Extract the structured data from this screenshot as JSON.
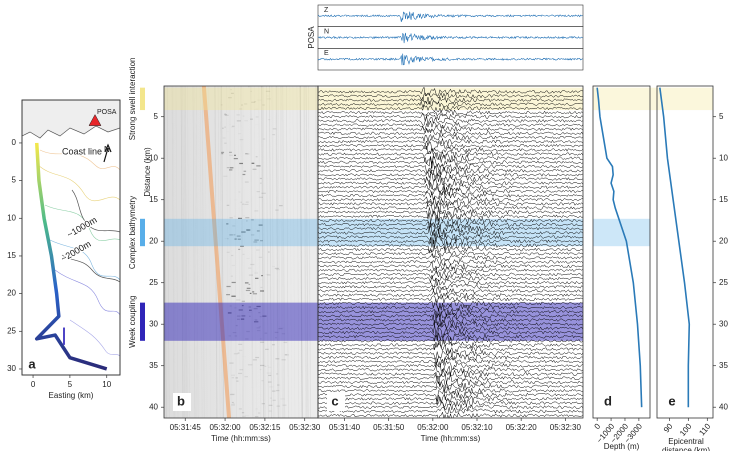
{
  "chart_data": [
    {
      "type": "map",
      "panel_label": "a",
      "xlabel": "Easting (km)",
      "xlim": [
        -1.5,
        11.8
      ],
      "ylim": [
        -5.7,
        30.8
      ],
      "y_inverted": true,
      "xticks": [
        0,
        5,
        10
      ],
      "yticks": [
        0,
        5,
        10,
        15,
        20,
        25,
        30
      ],
      "station": "POSA",
      "station_color": "#e8262a",
      "annotations": [
        "Coast line",
        "N",
        "~1000m",
        "~2000m"
      ],
      "cable": {
        "x": [
          0.5,
          0.8,
          1.5,
          2.5,
          3.2,
          3.5,
          1.0,
          0.5,
          3.0,
          4.0,
          5.0,
          10.0
        ],
        "y": [
          0,
          5,
          10,
          15,
          20,
          23,
          25.5,
          26,
          25.5,
          27,
          28.5,
          30
        ]
      }
    },
    {
      "type": "waterfall",
      "panel_label": "b",
      "xlabel": "Time (hh:mm:ss)",
      "ylabel": "Distance (km)",
      "xlim": [
        "05:31:37",
        "05:32:35"
      ],
      "xticks": [
        "05:31:45",
        "05:32:00",
        "05:32:15",
        "05:32:30"
      ],
      "ylim": [
        1.3,
        41.3
      ],
      "yticks": [
        5,
        10,
        15,
        20,
        25,
        30,
        35,
        40
      ],
      "bands": [
        {
          "label": "Strong swell interaction",
          "range": [
            1.5,
            4.2
          ],
          "color": "#f3e68c"
        },
        {
          "label": "Complex bathymetry",
          "range": [
            17.3,
            20.6
          ],
          "color": "#58aee9"
        },
        {
          "label": "Week coupling",
          "range": [
            27.4,
            32.0
          ],
          "color": "#2f25b8"
        }
      ]
    },
    {
      "type": "seismogram",
      "panel_label": "c",
      "xlabel": "Time (hh:mm:ss)",
      "xlim": [
        "05:31:34",
        "05:32:34"
      ],
      "xticks": [
        "05:31:40",
        "05:31:50",
        "05:32:00",
        "05:32:10",
        "05:32:20",
        "05:32:30"
      ],
      "ylim": [
        1.3,
        41.3
      ]
    },
    {
      "type": "station-traces",
      "ylabel": "POSA",
      "color": "#1f6fb4",
      "series": [
        {
          "name": "Z"
        },
        {
          "name": "N"
        },
        {
          "name": "E"
        }
      ]
    },
    {
      "type": "line",
      "panel_label": "d",
      "xlabel": "Depth (m)",
      "color": "#2a7ab8",
      "xlim": [
        300,
        -3800
      ],
      "ylim": [
        1.3,
        41.3
      ],
      "xticks": [
        0,
        {
          "value": -1000,
          "label": "−1000"
        },
        {
          "value": -2000,
          "label": "−2000"
        },
        {
          "value": -3000,
          "label": "−3000"
        }
      ],
      "y": [
        1.5,
        3,
        5,
        7,
        9,
        10,
        11,
        12,
        13,
        14,
        15,
        16,
        17,
        18,
        20,
        25,
        30,
        35,
        40
      ],
      "values": [
        0,
        -100,
        -200,
        -400,
        -600,
        -700,
        -1100,
        -1150,
        -1000,
        -1200,
        -1150,
        -1300,
        -1500,
        -1700,
        -2100,
        -2600,
        -2900,
        -3100,
        -3200
      ]
    },
    {
      "type": "line",
      "panel_label": "e",
      "xlabel": "Epicentral distance (km)",
      "color": "#2a7ab8",
      "xlim": [
        83.5,
        113
      ],
      "ylim": [
        1.3,
        41.3
      ],
      "xticks": [
        90,
        100,
        110
      ],
      "yticks": [
        5,
        10,
        15,
        20,
        25,
        30,
        35,
        40
      ],
      "y": [
        1.5,
        5,
        10,
        15,
        20,
        25,
        30,
        35,
        40
      ],
      "values": [
        85,
        87,
        89,
        92,
        95,
        98,
        100.5,
        100,
        100
      ]
    }
  ]
}
